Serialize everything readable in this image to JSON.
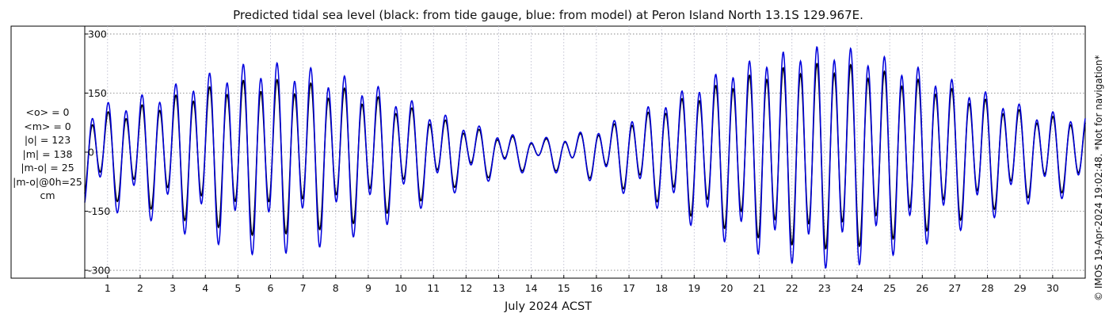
{
  "chart_data": {
    "type": "line",
    "title": "Predicted tidal sea level (black: from tide gauge, blue: from model) at Peron Island North 13.1S 129.967E.",
    "xlabel": "July 2024 ACST",
    "ylabel": "",
    "xlim": [
      0.3,
      31.0
    ],
    "ylim": [
      -320,
      320
    ],
    "x_ticks": [
      1,
      2,
      3,
      4,
      5,
      6,
      7,
      8,
      9,
      10,
      11,
      12,
      13,
      14,
      15,
      16,
      17,
      18,
      19,
      20,
      21,
      22,
      23,
      24,
      25,
      26,
      27,
      28,
      29,
      30
    ],
    "x_tick_labels": [
      "1",
      "2",
      "3",
      "4",
      "5",
      "6",
      "7",
      "8",
      "9",
      "10",
      "11",
      "12",
      "13",
      "14",
      "15",
      "16",
      "17",
      "18",
      "19",
      "20",
      "21",
      "22",
      "23",
      "24",
      "25",
      "26",
      "27",
      "28",
      "29",
      "30"
    ],
    "y_ticks": [
      -300,
      -150,
      0,
      150,
      300
    ],
    "y_tick_labels": [
      "-300",
      "-150",
      "0",
      "150",
      "300"
    ],
    "grid": true,
    "series": [
      {
        "color": "#000000",
        "x": [
          0.3,
          1.5,
          2.5,
          3.5,
          4.5,
          5.5,
          6.5,
          7.5,
          8.5,
          9.5,
          10.5,
          11.5,
          12.5,
          13.5,
          14.5,
          15.5,
          16.5,
          17.5,
          18.5,
          19.5,
          20.5,
          21.5,
          22.5,
          23.5,
          24.5,
          25.5,
          26.5,
          27.5,
          28.5,
          29.5,
          31.0
        ],
        "amp_hi": [
          115,
          130,
          150,
          180,
          195,
          215,
          210,
          200,
          185,
          160,
          130,
          95,
          70,
          50,
          45,
          60,
          85,
          115,
          150,
          185,
          210,
          230,
          245,
          250,
          235,
          215,
          195,
          165,
          140,
          110,
          100
        ],
        "amp_lo": [
          40,
          60,
          80,
          100,
          120,
          125,
          120,
          110,
          100,
          80,
          55,
          35,
          20,
          10,
          5,
          15,
          35,
          60,
          90,
          120,
          150,
          170,
          180,
          175,
          160,
          140,
          120,
          100,
          75,
          55,
          50
        ]
      },
      {
        "color": "#0000dd",
        "x": [
          0.3,
          1.5,
          2.5,
          3.5,
          4.5,
          5.5,
          6.5,
          7.5,
          8.5,
          9.5,
          10.5,
          11.5,
          12.5,
          13.5,
          14.5,
          15.5,
          16.5,
          17.5,
          18.5,
          19.5,
          20.5,
          21.5,
          22.5,
          23.5,
          24.5,
          25.5,
          26.5,
          27.5,
          28.5,
          29.5,
          31.0
        ],
        "amp_hi": [
          140,
          160,
          180,
          215,
          240,
          265,
          260,
          245,
          220,
          190,
          150,
          110,
          80,
          55,
          50,
          65,
          95,
          130,
          170,
          215,
          250,
          275,
          295,
          300,
          280,
          255,
          225,
          190,
          160,
          125,
          115
        ],
        "amp_lo": [
          50,
          75,
          95,
          120,
          140,
          150,
          145,
          130,
          115,
          95,
          65,
          40,
          25,
          12,
          5,
          15,
          40,
          70,
          105,
          140,
          175,
          195,
          205,
          200,
          185,
          160,
          135,
          110,
          85,
          60,
          55
        ]
      }
    ]
  },
  "stats": {
    "mean_obs": "<o> = 0",
    "mean_model": "<m> = 0",
    "abs_obs": "|o| = 123",
    "abs_model": "|m| = 138",
    "abs_diff": "|m-o| = 25",
    "abs_diff_0h": "|m-o|@0h=25",
    "unit": "cm"
  },
  "side_note": "© IMOS 19-Apr-2024 19:02:48. *Not for navigation*"
}
